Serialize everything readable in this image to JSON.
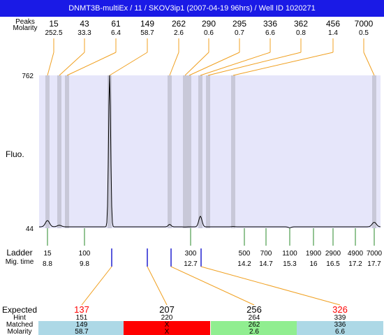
{
  "title": "DNMT3B-multiEx / 11  / SKOV3ip1 (2007-04-19 96hrs) / Well ID 1020271",
  "row_labels": {
    "peaks": "Peaks",
    "molarity": "Molarity",
    "fluo": "Fluo.",
    "ladder": "Ladder",
    "mig_time": "Mig. time",
    "expected": "Expected",
    "hint": "Hint",
    "matched": "Matched",
    "molarity_bottom": "Molarity"
  },
  "colors": {
    "title_bg": "#1a1ae6",
    "plot_bg": "#e6e6fa",
    "peak_band": "#c8c8d8",
    "peak_line": "#f0a020",
    "ladder_tick": "#2a8a2a",
    "marker": "#2020d0",
    "expected_red": "#ff0000",
    "cell_blue": "#add8e6",
    "cell_red": "#ff0000",
    "cell_green": "#90ee90"
  },
  "chart_data": {
    "type": "line",
    "y_axis": {
      "max": 762,
      "min": 44
    },
    "peaks": [
      {
        "size": "15",
        "molarity": "252.5",
        "x": 15
      },
      {
        "size": "43",
        "molarity": "33.3",
        "x": 43
      },
      {
        "size": "61",
        "molarity": "6.4",
        "x": 61
      },
      {
        "size": "149",
        "molarity": "58.7",
        "x": 149
      },
      {
        "size": "262",
        "molarity": "2.6",
        "x": 262
      },
      {
        "size": "290",
        "molarity": "0.6",
        "x": 290
      },
      {
        "size": "295",
        "molarity": "0.7",
        "x": 295
      },
      {
        "size": "336",
        "molarity": "6.6",
        "x": 336
      },
      {
        "size": "362",
        "molarity": "0.8",
        "x": 362
      },
      {
        "size": "456",
        "molarity": "1.4",
        "x": 456
      },
      {
        "size": "7000",
        "molarity": "0.5",
        "x": 7000
      }
    ],
    "ladder": [
      {
        "size": "15",
        "time": "8.8"
      },
      {
        "size": "100",
        "time": "9.8"
      },
      {
        "size": "300",
        "time": "12.7"
      },
      {
        "size": "500",
        "time": "14.2"
      },
      {
        "size": "700",
        "time": "14.7"
      },
      {
        "size": "1100",
        "time": "15.3"
      },
      {
        "size": "1900",
        "time": "16"
      },
      {
        "size": "2900",
        "time": "16.5"
      },
      {
        "size": "4900",
        "time": "17.2"
      },
      {
        "size": "7000",
        "time": "17.7"
      }
    ],
    "trace": [
      {
        "x": 15,
        "y": 80
      },
      {
        "x": 43,
        "y": 58
      },
      {
        "x": 149,
        "y": 762
      },
      {
        "x": 262,
        "y": 62
      },
      {
        "x": 290,
        "y": 50
      },
      {
        "x": 295,
        "y": 100
      },
      {
        "x": 336,
        "y": 52
      },
      {
        "x": 456,
        "y": 46
      },
      {
        "x": 7000,
        "y": 72
      }
    ],
    "expected": [
      {
        "expected": "137",
        "hint": "151",
        "matched": "149",
        "molarity": "58.7",
        "status": "matched"
      },
      {
        "expected": "207",
        "hint": "220",
        "matched": "X",
        "molarity": "X",
        "status": "missing"
      },
      {
        "expected": "256",
        "hint": "264",
        "matched": "262",
        "molarity": "2.6",
        "status": "matched-green"
      },
      {
        "expected": "326",
        "hint": "339",
        "matched": "336",
        "molarity": "6.6",
        "status": "matched"
      }
    ]
  }
}
